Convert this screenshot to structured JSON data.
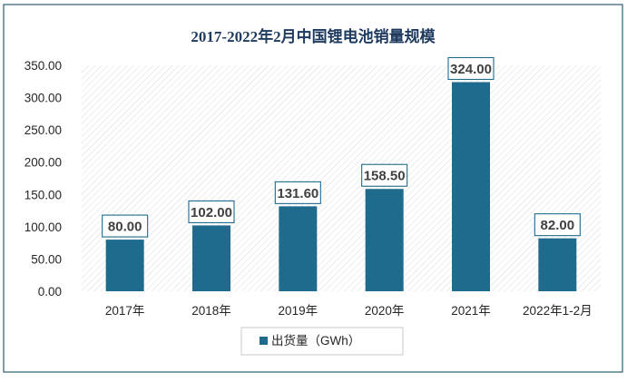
{
  "chart_data": {
    "type": "bar",
    "title": "2017-2022年2月中国锂电池销量规模",
    "categories": [
      "2017年",
      "2018年",
      "2019年",
      "2020年",
      "2021年",
      "2022年1-2月"
    ],
    "series": [
      {
        "name": "出货量（GWh）",
        "values": [
          80.0,
          102.0,
          131.6,
          158.5,
          324.0,
          82.0
        ],
        "data_labels": [
          "80.00",
          "102.00",
          "131.60",
          "158.50",
          "324.00",
          "82.00"
        ]
      }
    ],
    "yticks": [
      "0.00",
      "50.00",
      "100.00",
      "150.00",
      "200.00",
      "250.00",
      "300.00",
      "350.00"
    ],
    "ylim": [
      0,
      350
    ],
    "xlabel": "",
    "ylabel": "",
    "grid": false,
    "legend_position": "bottom",
    "colors": {
      "bar": "#1F6B8E",
      "title": "#1F3A5F",
      "frame": "#2E5C73",
      "plot_hatch": "#D8D8D8",
      "label_border": "#1F6B8E"
    }
  }
}
